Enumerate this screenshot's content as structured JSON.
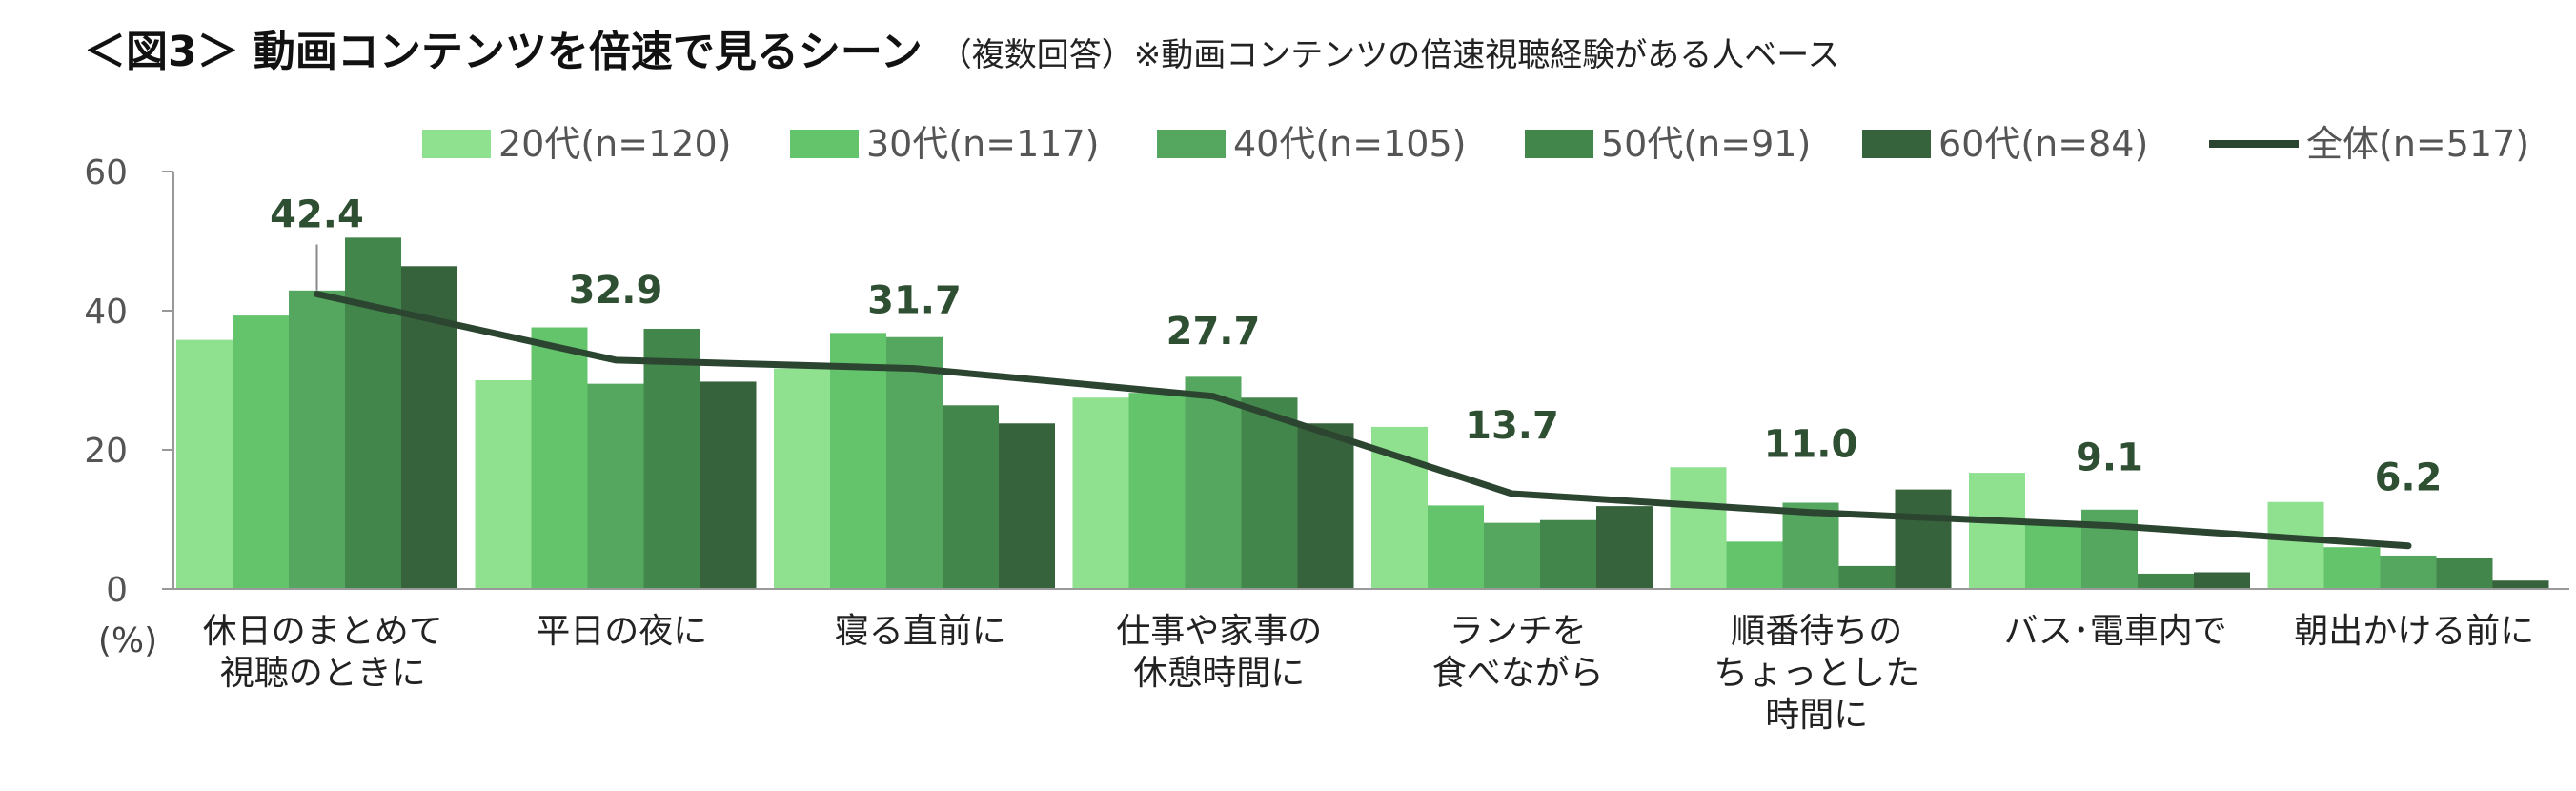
{
  "title": {
    "main": "＜図3＞ 動画コンテンツを倍速で見るシーン",
    "sub": "（複数回答）※動画コンテンツの倍速視聴経験がある人ベース"
  },
  "colors": {
    "s20": "#8fe08f",
    "s30": "#64c46c",
    "s40": "#55a65f",
    "s50": "#42864c",
    "s60": "#37633c",
    "total": "#2c4530",
    "axis": "#999999"
  },
  "chart_data": {
    "type": "bar",
    "unit_label": "(%)",
    "ylim": [
      0,
      60
    ],
    "yticks": [
      "0",
      "20",
      "40",
      "60"
    ],
    "categories": [
      [
        "休日のまとめて",
        "視聴のときに"
      ],
      [
        "平日の夜に"
      ],
      [
        "寝る直前に"
      ],
      [
        "仕事や家事の",
        "休憩時間に"
      ],
      [
        "ランチを",
        "食べながら"
      ],
      [
        "順番待ちの",
        "ちょっとした",
        "時間に"
      ],
      [
        "バス･電車内で"
      ],
      [
        "朝出かける前に"
      ]
    ],
    "series": [
      {
        "name": "20代(n=120)",
        "values": [
          35.8,
          30.0,
          31.7,
          27.5,
          23.3,
          17.5,
          16.7,
          12.5
        ]
      },
      {
        "name": "30代(n=117)",
        "values": [
          39.3,
          37.6,
          36.8,
          28.2,
          12.0,
          6.8,
          9.4,
          6.0
        ]
      },
      {
        "name": "40代(n=105)",
        "values": [
          42.9,
          29.5,
          36.2,
          30.5,
          9.5,
          12.4,
          11.4,
          4.8
        ]
      },
      {
        "name": "50代(n=91)",
        "values": [
          50.5,
          37.4,
          26.4,
          27.5,
          9.9,
          3.3,
          2.2,
          4.4
        ]
      },
      {
        "name": "60代(n=84)",
        "values": [
          46.4,
          29.8,
          23.8,
          23.8,
          11.9,
          14.3,
          2.4,
          1.2
        ]
      }
    ],
    "total": {
      "name": "全体(n=517)",
      "values": [
        42.4,
        32.9,
        31.7,
        27.7,
        13.7,
        11.0,
        9.1,
        6.2
      ]
    },
    "total_labels": [
      "42.4",
      "32.9",
      "31.7",
      "27.7",
      "13.7",
      "11.0",
      "9.1",
      "6.2"
    ]
  }
}
